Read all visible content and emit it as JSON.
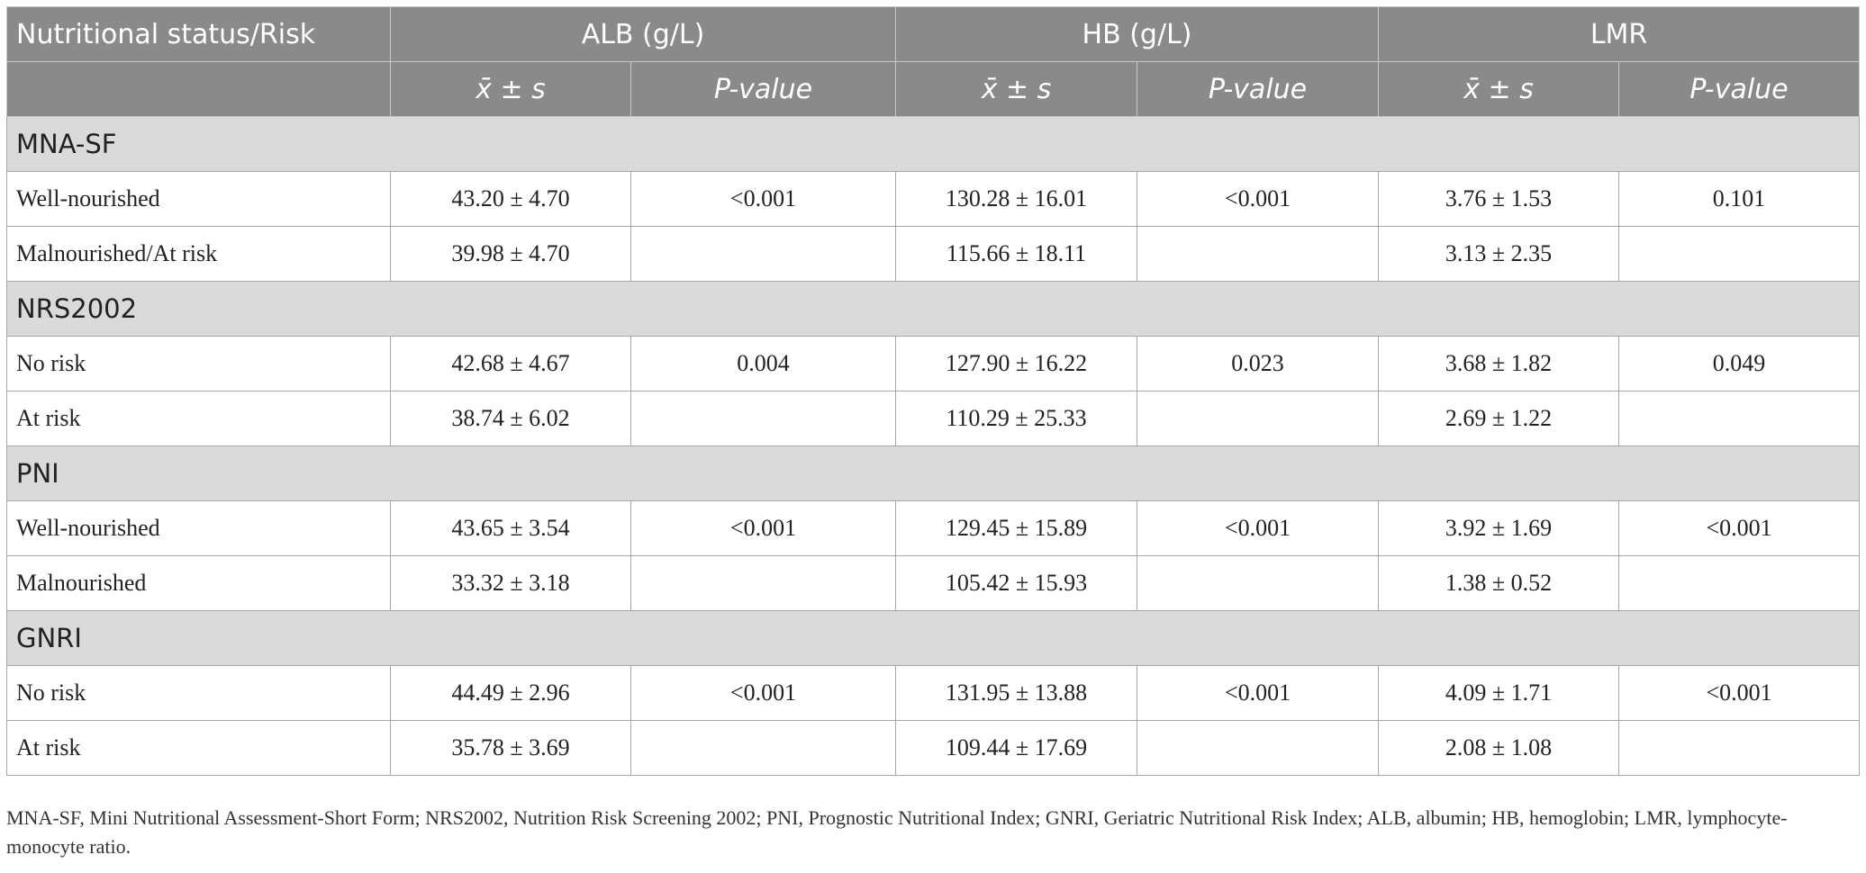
{
  "table": {
    "header": {
      "first": "Nutritional status/Risk",
      "groups": [
        "ALB (g/L)",
        "HB (g/L)",
        "LMR"
      ],
      "subcolumns": [
        "x̄ ± s",
        "P-value",
        "x̄ ± s",
        "P-value",
        "x̄ ± s",
        "P-value"
      ]
    },
    "sections": [
      {
        "title": "MNA-SF",
        "rows": [
          [
            "Well-nourished",
            "43.20 ± 4.70",
            "<0.001",
            "130.28 ± 16.01",
            "<0.001",
            "3.76 ± 1.53",
            "0.101"
          ],
          [
            "Malnourished/At risk",
            "39.98 ± 4.70",
            null,
            "115.66 ± 18.11",
            null,
            "3.13 ± 2.35",
            null
          ]
        ]
      },
      {
        "title": "NRS2002",
        "rows": [
          [
            "No risk",
            "42.68 ± 4.67",
            "0.004",
            "127.90 ± 16.22",
            "0.023",
            "3.68 ± 1.82",
            "0.049"
          ],
          [
            "At risk",
            "38.74 ± 6.02",
            null,
            "110.29 ± 25.33",
            null,
            "2.69 ± 1.22",
            null
          ]
        ]
      },
      {
        "title": "PNI",
        "rows": [
          [
            "Well-nourished",
            "43.65 ± 3.54",
            "<0.001",
            "129.45 ± 15.89",
            "<0.001",
            "3.92 ± 1.69",
            "<0.001"
          ],
          [
            "Malnourished",
            "33.32 ± 3.18",
            null,
            "105.42 ± 15.93",
            null,
            "1.38 ± 0.52",
            null
          ]
        ]
      },
      {
        "title": "GNRI",
        "rows": [
          [
            "No risk",
            "44.49 ± 2.96",
            "<0.001",
            "131.95 ± 13.88",
            "<0.001",
            "4.09 ± 1.71",
            "<0.001"
          ],
          [
            "At risk",
            "35.78 ± 3.69",
            null,
            "109.44 ± 17.69",
            null,
            "2.08 ± 1.08",
            null
          ]
        ]
      }
    ],
    "footnote": "MNA-SF, Mini Nutritional Assessment-Short Form; NRS2002, Nutrition Risk Screening 2002; PNI, Prognostic Nutritional Index; GNRI, Geriatric Nutritional Risk Index; ALB, albumin; HB, hemoglobin; LMR, lymphocyte-monocyte ratio."
  }
}
